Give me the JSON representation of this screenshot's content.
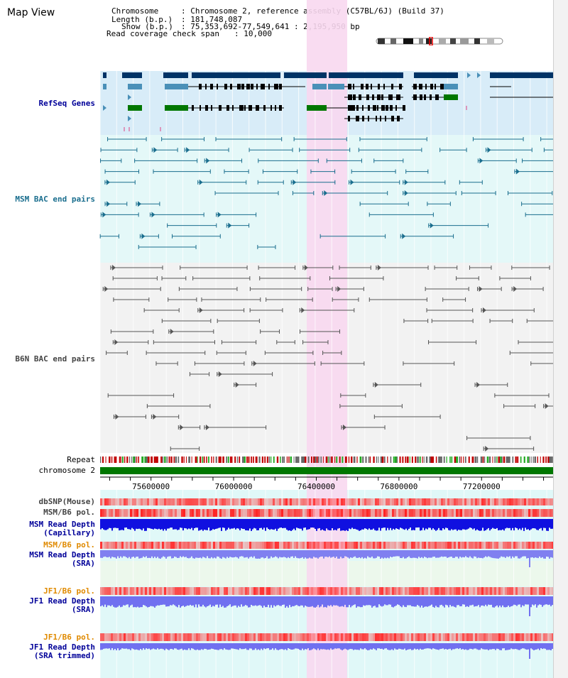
{
  "page": {
    "title": "Map View"
  },
  "info": {
    "chromosome_label": "Chromosome",
    "chromosome_value": ": Chromosome 2, reference assembly (C57BL/6J) (Build 37)",
    "length_label": "Length (b.p.)",
    "length_value": ": 181,748,087",
    "show_label": "Show (b.p.)",
    "show_value": ": 75,353,692-77,549,641 : 2,195,950 bp",
    "coverage_label": "Read coverage check span",
    "coverage_value": ": 10,000"
  },
  "tracks": {
    "refseq": "RefSeq Genes",
    "msm_bac": "MSM BAC end pairs",
    "b6n_bac": "B6N BAC end pairs",
    "repeat": "Repeat",
    "chromosome": "chromosome 2",
    "dbsnp": "dbSNP(Mouse)",
    "msm_b6_pol": "MSM/B6 pol.",
    "msm_depth_cap_1": "MSM Read Depth",
    "msm_depth_cap_2": "(Capillary)",
    "msm_b6_pol_2": "MSM/B6 pol.",
    "msm_depth_sra_1": "MSM Read Depth",
    "msm_depth_sra_2": "(SRA)",
    "jf1_b6_pol": "JF1/B6 pol.",
    "jf1_depth_sra_1": "JF1 Read Depth",
    "jf1_depth_sra_2": "(SRA)",
    "jf1_b6_pol_2": "JF1/B6 pol.",
    "jf1_depth_trim_1": "JF1 Read Depth",
    "jf1_depth_trim_2": "(SRA trimmed)"
  },
  "axis": {
    "ticks": [
      "75600000",
      "76000000",
      "76400000",
      "76800000",
      "77200000"
    ],
    "range": [
      75353692,
      77549641
    ]
  },
  "colors": {
    "highlight": "#f8d8f0",
    "refseq_bg": "#d8ecf8",
    "msm_bg": "#e4f8f8",
    "b6n_bg": "#f2f2f2",
    "lower_bg": "#e0f8f8",
    "refseq_dark": "#003366",
    "refseq_light": "#4a90b8",
    "refseq_green": "#007700",
    "msm_line": "#1a6e8e",
    "b6n_line": "#555555",
    "label_blue": "#000099",
    "label_orange": "#e08a00"
  }
}
